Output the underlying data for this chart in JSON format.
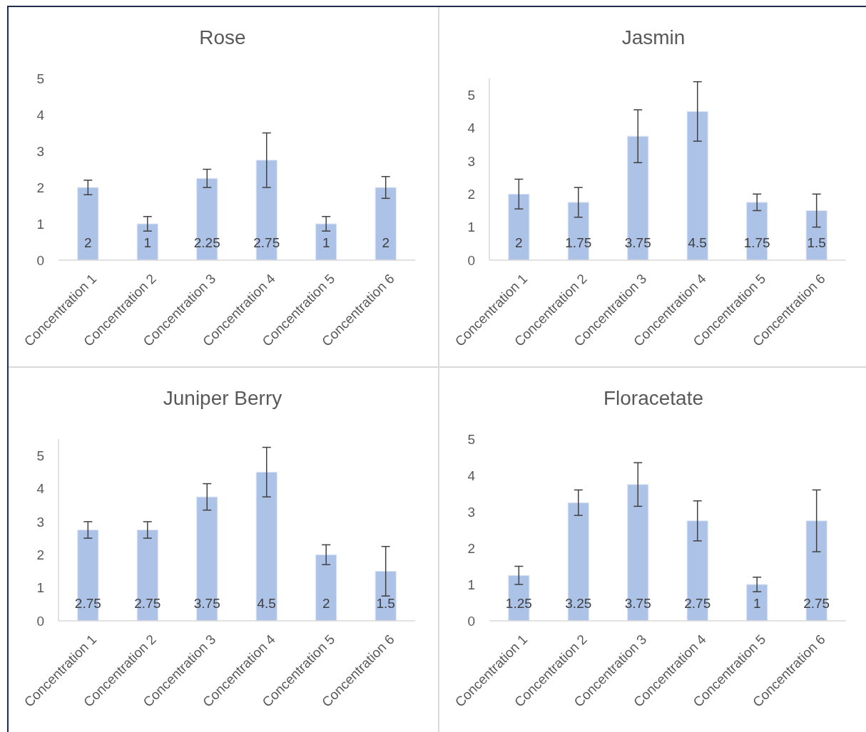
{
  "chart_data": [
    {
      "type": "bar",
      "title": "Rose",
      "categories": [
        "Concentration 1",
        "Concentration 2",
        "Concentration 3",
        "Concentration 4",
        "Concentration 5",
        "Concentration 6"
      ],
      "values": [
        2,
        1,
        2.25,
        2.75,
        1,
        2
      ],
      "errors": [
        0.2,
        0.2,
        0.25,
        0.75,
        0.2,
        0.3
      ],
      "color": "#a9bfe6",
      "ylim": [
        0,
        5
      ],
      "yticks": [
        0,
        1,
        2,
        3,
        4,
        5
      ],
      "data_labels": true,
      "grid": false
    },
    {
      "type": "bar",
      "title": "Jasmin",
      "categories": [
        "Concentration 1",
        "Concentration 2",
        "Concentration 3",
        "Concentration 4",
        "Concentration 5",
        "Concentration 6"
      ],
      "values": [
        2,
        1.75,
        3.75,
        4.5,
        1.75,
        1.5
      ],
      "errors": [
        0.45,
        0.45,
        0.8,
        0.9,
        0.25,
        0.5
      ],
      "color": "#a9bfe6",
      "ylim": [
        0,
        5.5
      ],
      "yticks": [
        0,
        1,
        2,
        3,
        4,
        5
      ],
      "data_labels": true,
      "grid": false
    },
    {
      "type": "bar",
      "title": "Juniper Berry",
      "categories": [
        "Concentration 1",
        "Concentration 2",
        "Concentration 3",
        "Concentration 4",
        "Concentration 5",
        "Concentration 6"
      ],
      "values": [
        2.75,
        2.75,
        3.75,
        4.5,
        2,
        1.5
      ],
      "errors": [
        0.25,
        0.25,
        0.4,
        0.75,
        0.3,
        0.75
      ],
      "color": "#a9bfe6",
      "ylim": [
        0,
        5.5
      ],
      "yticks": [
        0,
        1,
        2,
        3,
        4,
        5
      ],
      "data_labels": true,
      "grid": false
    },
    {
      "type": "bar",
      "title": "Floracetate",
      "categories": [
        "Concentration 1",
        "Concentration 2",
        "Concentration 3",
        "Concentration 4",
        "Concentration 5",
        "Concentration 6"
      ],
      "values": [
        1.25,
        3.25,
        3.75,
        2.75,
        1,
        2.75
      ],
      "errors": [
        0.25,
        0.35,
        0.6,
        0.55,
        0.2,
        0.85
      ],
      "color": "#a9bfe6",
      "ylim": [
        0,
        5
      ],
      "yticks": [
        0,
        1,
        2,
        3,
        4,
        5
      ],
      "data_labels": true,
      "grid": false
    }
  ]
}
